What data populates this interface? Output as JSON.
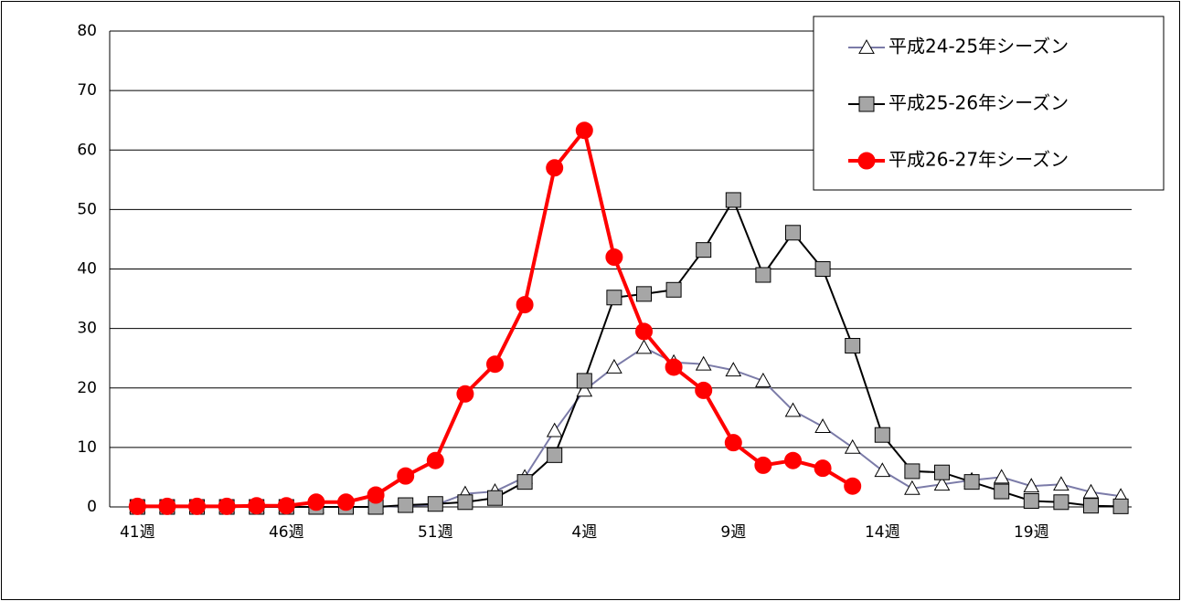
{
  "chart_data": {
    "type": "line",
    "categories": [
      "41週",
      null,
      null,
      null,
      null,
      "46週",
      null,
      null,
      null,
      null,
      "51週",
      null,
      null,
      null,
      null,
      "4週",
      null,
      null,
      null,
      null,
      "9週",
      null,
      null,
      null,
      null,
      "14週",
      null,
      null,
      null,
      null,
      "19週",
      null,
      null,
      null
    ],
    "series": [
      {
        "name": "平成24-25年シーズン",
        "color": "#7b7ba8",
        "marker": "triangle",
        "values": [
          0,
          0,
          0,
          0,
          0,
          0,
          0,
          0,
          0,
          0.2,
          0.3,
          2.2,
          2.6,
          5,
          12.8,
          19.6,
          23.5,
          26.8,
          24.3,
          24,
          23,
          21.2,
          16.2,
          13.5,
          10,
          6.1,
          3.1,
          3.8,
          4.5,
          5,
          3.5,
          3.8,
          2.5,
          1.8
        ]
      },
      {
        "name": "平成25-26年シーズン",
        "color": "#000000",
        "marker": "square",
        "values": [
          0,
          0,
          0,
          0,
          0,
          0,
          0,
          0,
          0,
          0.3,
          0.5,
          0.8,
          1.5,
          4.2,
          8.7,
          21.2,
          35.2,
          35.8,
          36.5,
          43.2,
          51.6,
          39,
          46.1,
          40,
          27.1,
          12.1,
          6,
          5.8,
          4.2,
          2.6,
          1,
          0.8,
          0.2,
          0.1
        ]
      },
      {
        "name": "平成26-27年シーズン",
        "color": "#ff0000",
        "marker": "circle",
        "values": [
          0.1,
          0.1,
          0.1,
          0.1,
          0.2,
          0.2,
          0.8,
          0.8,
          2,
          5.2,
          7.8,
          19,
          24,
          34,
          57,
          63.3,
          42,
          29.5,
          23.5,
          19.6,
          10.8,
          7,
          7.8,
          6.5,
          3.5,
          null,
          null,
          null,
          null,
          null,
          null,
          null,
          null,
          null
        ]
      }
    ],
    "ylim": [
      0,
      80
    ],
    "yticks": [
      0,
      10,
      20,
      30,
      40,
      50,
      60,
      70,
      80
    ],
    "grid": true,
    "legend": "upper right"
  }
}
